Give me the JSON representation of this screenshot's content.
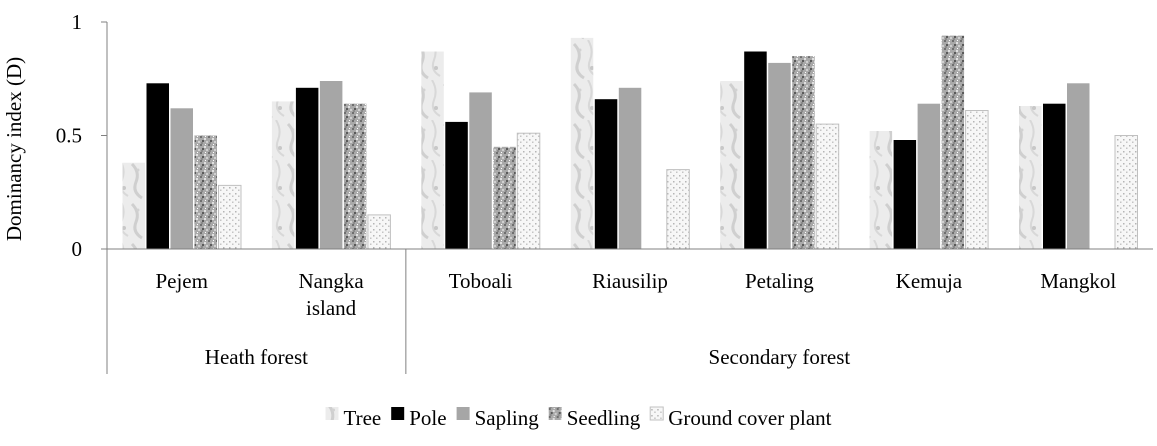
{
  "chart_data": {
    "type": "bar",
    "ylabel": "Dominancy  index (D)",
    "ylim": [
      0,
      1
    ],
    "yticks": [
      "0",
      "0.5",
      "1"
    ],
    "grid": false,
    "legend_position": "bottom",
    "categories": [
      "Pejem",
      "Nangka island",
      "Toboali",
      "Riausilip",
      "Petaling",
      "Kemuja",
      "Mangkol"
    ],
    "category_lines": [
      [
        "Pejem"
      ],
      [
        "Nangka",
        "island"
      ],
      [
        "Toboali"
      ],
      [
        "Riausilip"
      ],
      [
        "Petaling"
      ],
      [
        "Kemuja"
      ],
      [
        "Mangkol"
      ]
    ],
    "groups": [
      {
        "label": "Heath forest",
        "count": 2
      },
      {
        "label": "Secondary forest",
        "count": 5
      }
    ],
    "series": [
      {
        "name": "Tree",
        "pattern": "tree",
        "values": [
          0.38,
          0.65,
          0.87,
          0.93,
          0.74,
          0.52,
          0.63
        ]
      },
      {
        "name": "Pole",
        "pattern": "pole",
        "values": [
          0.73,
          0.71,
          0.56,
          0.66,
          0.87,
          0.48,
          0.64
        ]
      },
      {
        "name": "Sapling",
        "pattern": "sapling",
        "values": [
          0.62,
          0.74,
          0.69,
          0.71,
          0.82,
          0.64,
          0.73
        ]
      },
      {
        "name": "Seedling",
        "pattern": "seedling",
        "values": [
          0.5,
          0.64,
          0.45,
          null,
          0.85,
          0.94,
          null
        ]
      },
      {
        "name": "Ground cover plant",
        "pattern": "ground",
        "values": [
          0.28,
          0.15,
          0.51,
          0.35,
          0.55,
          0.61,
          0.5
        ]
      }
    ]
  },
  "colors": {
    "pole": "#000000",
    "sapling": "#a6a6a6",
    "axis": "#808080"
  }
}
